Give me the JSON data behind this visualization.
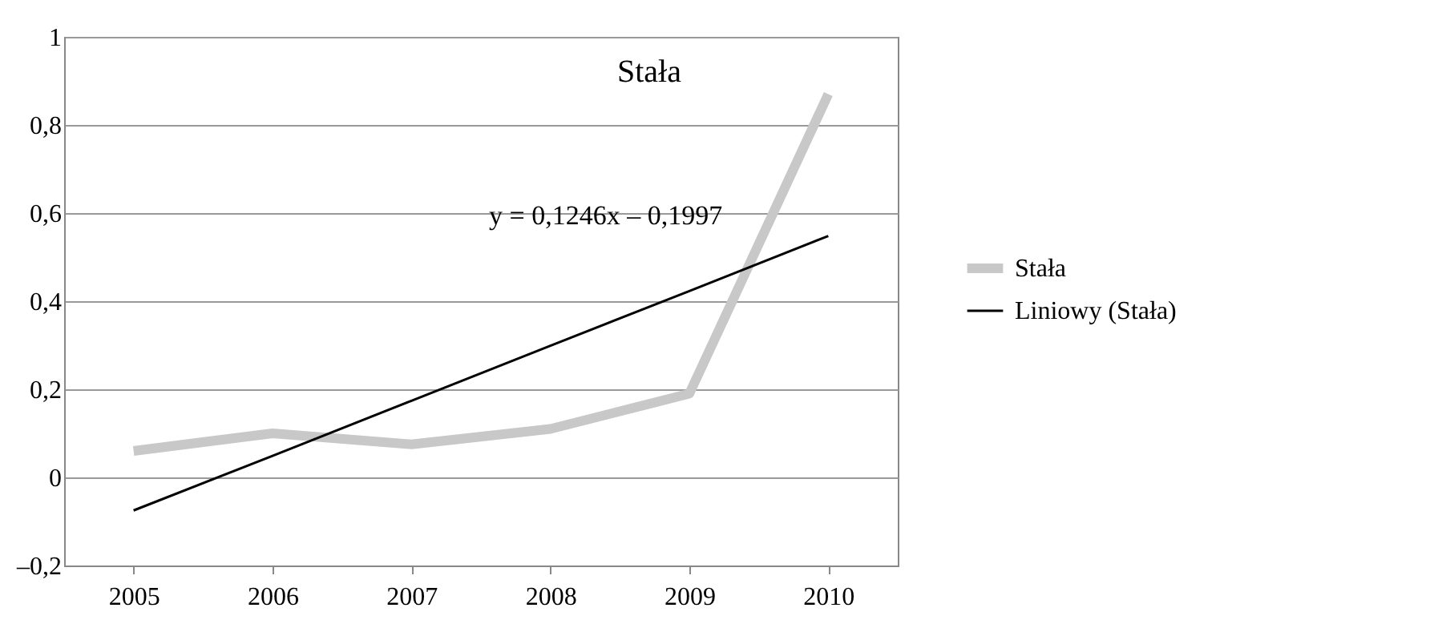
{
  "chart_data": {
    "type": "line",
    "title": "Stała",
    "categories": [
      "2005",
      "2006",
      "2007",
      "2008",
      "2009",
      "2010"
    ],
    "series": [
      {
        "name": "Stała",
        "color": "#c8c8c8",
        "values": [
          0.06,
          0.1,
          0.075,
          0.11,
          0.19,
          0.87
        ]
      },
      {
        "name": "Liniowy (Stała)",
        "color": "#000000",
        "values": [
          -0.075,
          0.049,
          0.174,
          0.299,
          0.423,
          0.548
        ]
      }
    ],
    "ylim": [
      -0.2,
      1
    ],
    "yticks": [
      {
        "value": -0.2,
        "label": "–0,2"
      },
      {
        "value": 0,
        "label": "0"
      },
      {
        "value": 0.2,
        "label": "0,2"
      },
      {
        "value": 0.4,
        "label": "0,4"
      },
      {
        "value": 0.6,
        "label": "0,6"
      },
      {
        "value": 0.8,
        "label": "0,8"
      },
      {
        "value": 1,
        "label": "1"
      }
    ],
    "grid": "y",
    "legend": "right",
    "marker": "none",
    "line_style": "solid",
    "annotations": [
      "y = 0,1246x – 0,1997"
    ]
  }
}
